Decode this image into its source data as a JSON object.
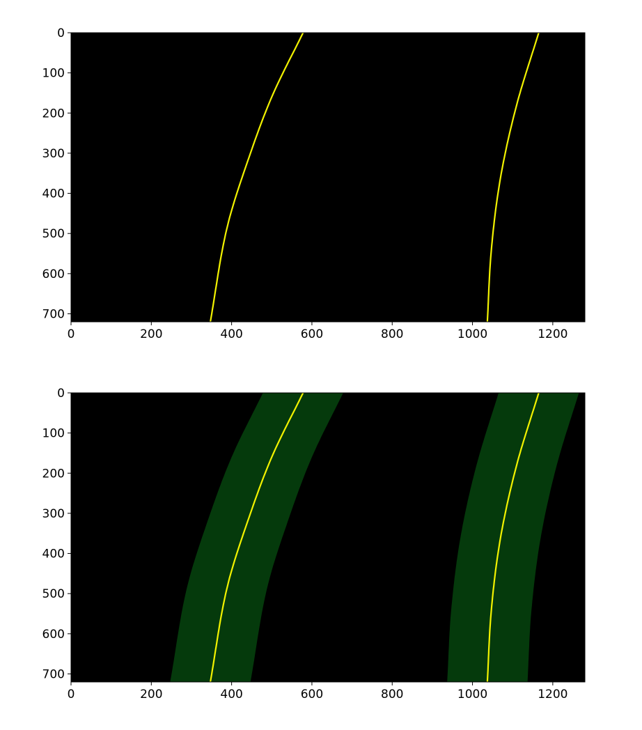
{
  "figure": {
    "background": "#ffffff",
    "panel_count": 2
  },
  "chart_data": [
    {
      "type": "line",
      "description_hint": "image plot of warped binary lane pixels with fitted lane polynomials",
      "xlim": [
        0,
        1280
      ],
      "ylim": [
        720,
        0
      ],
      "xticks": [
        0,
        200,
        400,
        600,
        800,
        1000,
        1200
      ],
      "yticks": [
        0,
        100,
        200,
        300,
        400,
        500,
        600,
        700
      ],
      "background_color": "#000000",
      "grid": false,
      "lane_band": null,
      "series": [
        {
          "color": "#f2f200",
          "points": [
            [
              578,
              0
            ],
            [
              500,
              160
            ],
            [
              440,
              320
            ],
            [
              390,
              480
            ],
            [
              347,
              720
            ]
          ]
        },
        {
          "color": "#f2f200",
          "points": [
            [
              1165,
              0
            ],
            [
              1110,
              180
            ],
            [
              1070,
              360
            ],
            [
              1047,
              540
            ],
            [
              1037,
              720
            ]
          ]
        }
      ]
    },
    {
      "type": "area",
      "xlim": [
        0,
        1280
      ],
      "ylim": [
        720,
        0
      ],
      "xticks": [
        0,
        200,
        400,
        600,
        800,
        1000,
        1200
      ],
      "yticks": [
        0,
        100,
        200,
        300,
        400,
        500,
        600,
        700
      ],
      "background_color": "#000000",
      "grid": false,
      "lane_band": {
        "half_width": 100,
        "color": "#053a0c"
      },
      "series": [
        {
          "color": "#f2f200",
          "points": [
            [
              578,
              0
            ],
            [
              500,
              160
            ],
            [
              440,
              320
            ],
            [
              390,
              480
            ],
            [
              347,
              720
            ]
          ]
        },
        {
          "color": "#f2f200",
          "points": [
            [
              1165,
              0
            ],
            [
              1110,
              180
            ],
            [
              1070,
              360
            ],
            [
              1047,
              540
            ],
            [
              1037,
              720
            ]
          ]
        }
      ]
    }
  ]
}
